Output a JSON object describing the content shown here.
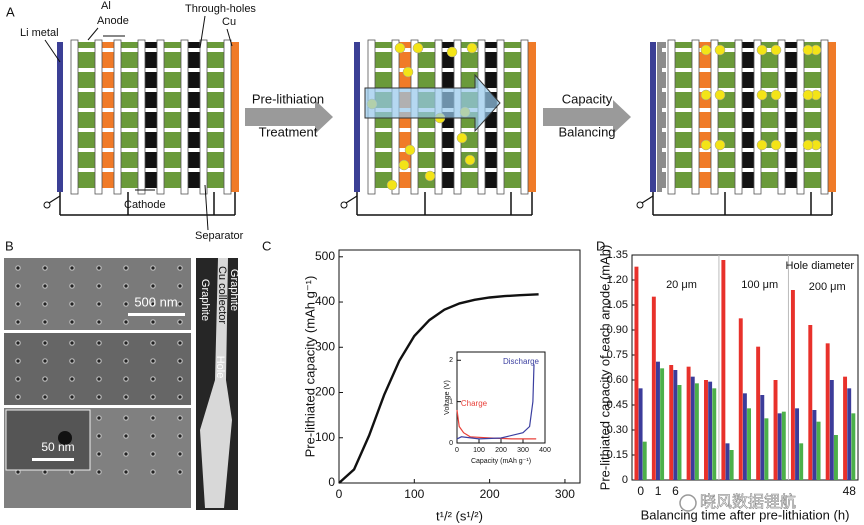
{
  "panel_a": {
    "label": "A",
    "li_metal": "Li metal",
    "al": "Al",
    "anode": "Anode",
    "through_holes": "Through-holes",
    "cu": "Cu",
    "cathode": "Cathode",
    "separator": "Separator",
    "arrow_1": [
      "Pre-lithiation",
      "Treatment"
    ],
    "arrow_2": [
      "Capacity",
      "Balancing"
    ]
  },
  "panel_b": {
    "label": "B",
    "scale_1": "500 nm",
    "scale_2": "50 nm",
    "cross_section": {
      "graphite_left": "Graphite",
      "cu_collector": "Cu collector",
      "hole": "Hole",
      "graphite_right": "Graphite"
    }
  },
  "panel_c": {
    "label": "C"
  },
  "panel_d": {
    "label": "D"
  },
  "watermark": "晓风数据锂航",
  "chart_data": [
    {
      "type": "line",
      "ylabel": "Pre-lithiated capacity (mAh g⁻¹)",
      "xlabel": "t¹/² (s¹/²)",
      "x": [
        0,
        20,
        40,
        60,
        80,
        100,
        120,
        140,
        160,
        180,
        200,
        220,
        240,
        265
      ],
      "values": [
        0,
        30,
        105,
        195,
        270,
        325,
        360,
        383,
        397,
        405,
        410,
        413,
        415,
        417
      ],
      "color": "#111111",
      "xlim": [
        0,
        320
      ],
      "xticks": [
        0,
        100,
        200,
        300
      ],
      "ylim": [
        0,
        515
      ],
      "yticks": [
        0,
        100,
        200,
        300,
        400,
        500
      ]
    },
    {
      "type": "line",
      "ylabel": "Voltage (V)",
      "xlabel": "Capacity (mAh g⁻¹)",
      "series": [
        {
          "name": "Charge",
          "color": "#e8413a",
          "x": [
            0,
            10,
            30,
            60,
            150,
            250,
            330,
            360
          ],
          "values": [
            0.8,
            0.4,
            0.25,
            0.15,
            0.12,
            0.1,
            0.1,
            0.1
          ]
        },
        {
          "name": "Discharge",
          "color": "#3b3fa0",
          "x": [
            0,
            20,
            100,
            200,
            300,
            330,
            345,
            350
          ],
          "values": [
            0.1,
            0.15,
            0.1,
            0.12,
            0.25,
            0.4,
            1.0,
            1.9
          ]
        }
      ],
      "xlim": [
        0,
        400
      ],
      "xticks": [
        0,
        100,
        200,
        300,
        400
      ],
      "ylim": [
        0,
        2.2
      ],
      "yticks": [
        0,
        1,
        2
      ]
    },
    {
      "type": "bar",
      "ylabel": "Pre-lithiated capacity of each anode (mAh)",
      "xlabel": "Balancing time after pre-lithiation (h)",
      "categories": [
        "0",
        "1",
        "6",
        null,
        null,
        null,
        null,
        null,
        null,
        null,
        null,
        null,
        "48"
      ],
      "group_labels": [
        "20 μm",
        "100 μm",
        "200 μm"
      ],
      "annotation": "Hole diameter",
      "series": [
        {
          "color": "#e8312b",
          "values": [
            1.28,
            1.1,
            0.69,
            0.68,
            0.6,
            1.32,
            0.97,
            0.8,
            0.6,
            1.14,
            0.93,
            0.82,
            0.62
          ]
        },
        {
          "color": "#3c3c9a",
          "values": [
            0.55,
            0.71,
            0.66,
            0.62,
            0.59,
            0.22,
            0.52,
            0.51,
            0.4,
            0.43,
            0.42,
            0.6,
            0.55
          ]
        },
        {
          "color": "#4cb04a",
          "values": [
            0.23,
            0.67,
            0.57,
            0.58,
            0.55,
            0.18,
            0.43,
            0.37,
            0.41,
            0.22,
            0.35,
            0.27,
            0.4
          ]
        }
      ],
      "ylim": [
        0,
        1.35
      ],
      "yticks": [
        0,
        0.15,
        {
          "value": 0.3,
          "label": "0.30"
        },
        0.45,
        {
          "value": 0.6,
          "label": "0.60"
        },
        0.75,
        {
          "value": 0.9,
          "label": "0.90"
        },
        1.05,
        {
          "value": 1.2,
          "label": "1.20"
        },
        1.35
      ]
    }
  ]
}
